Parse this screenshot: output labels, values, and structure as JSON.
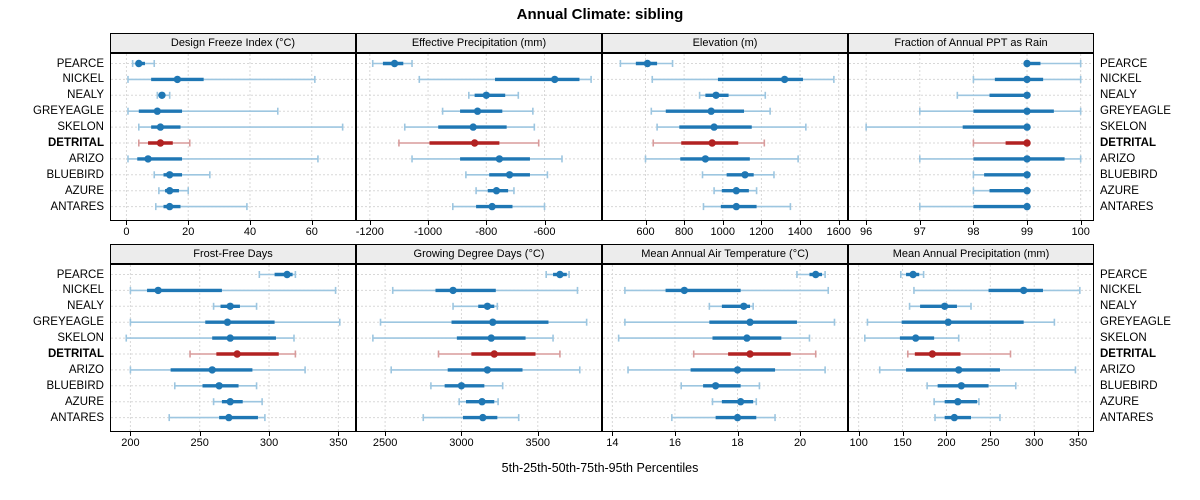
{
  "title": "Annual Climate: sibling",
  "caption": "5th-25th-50th-75th-95th Percentiles",
  "colors": {
    "main": "#1f77b4",
    "main_light": "#9dc6e0",
    "highlight": "#b22222",
    "highlight_light": "#d89b9b",
    "grid": "#d8d8d8",
    "strip_bg": "#ececec",
    "border": "#000000"
  },
  "chart_data": {
    "type": "dotplot-intervals",
    "layout": {
      "rows": 2,
      "cols": 4,
      "legend": "none",
      "grid": "dashed"
    },
    "percentile_order": [
      "5th",
      "25th",
      "50th",
      "75th",
      "95th"
    ],
    "sites": [
      "PEARCE",
      "NICKEL",
      "NEALY",
      "GREYEAGLE",
      "SKELON",
      "DETRITAL",
      "ARIZO",
      "BLUEBIRD",
      "AZURE",
      "ANTARES"
    ],
    "highlight_site": "DETRITAL",
    "panels": [
      {
        "title": "Design Freeze Index (°C)",
        "xlim": [
          -5,
          74
        ],
        "ticks": [
          0,
          20,
          40,
          60
        ],
        "values": [
          [
            2,
            3,
            4,
            6,
            9
          ],
          [
            0.5,
            8,
            16.5,
            25,
            61
          ],
          [
            10,
            11,
            11.5,
            12.5,
            14
          ],
          [
            0.5,
            4,
            10,
            18,
            49
          ],
          [
            4,
            8,
            11,
            17.5,
            70
          ],
          [
            4,
            7,
            11,
            15,
            20.5
          ],
          [
            0.5,
            3.5,
            7,
            18,
            62
          ],
          [
            9,
            12,
            14,
            18,
            27
          ],
          [
            10.5,
            12.5,
            14,
            17,
            20
          ],
          [
            9.5,
            12,
            14,
            17.5,
            39
          ]
        ]
      },
      {
        "title": "Effective Precipitation (mm)",
        "xlim": [
          -1244,
          -406
        ],
        "ticks": [
          -1200,
          -1000,
          -800,
          -600
        ],
        "values": [
          [
            -1190,
            -1155,
            -1115,
            -1085,
            -1055
          ],
          [
            -1030,
            -770,
            -565,
            -480,
            -440
          ],
          [
            -860,
            -840,
            -800,
            -735,
            -690
          ],
          [
            -950,
            -890,
            -830,
            -745,
            -640
          ],
          [
            -1080,
            -965,
            -845,
            -730,
            -635
          ],
          [
            -1100,
            -995,
            -840,
            -755,
            -620
          ],
          [
            -1055,
            -890,
            -755,
            -650,
            -540
          ],
          [
            -870,
            -790,
            -720,
            -650,
            -590
          ],
          [
            -835,
            -795,
            -765,
            -725,
            -705
          ],
          [
            -915,
            -835,
            -780,
            -710,
            -600
          ]
        ]
      },
      {
        "title": "Elevation (m)",
        "xlim": [
          380,
          1643
        ],
        "ticks": [
          600,
          800,
          1000,
          1200,
          1400,
          1600
        ],
        "values": [
          [
            470,
            550,
            610,
            660,
            740
          ],
          [
            635,
            975,
            1320,
            1415,
            1575
          ],
          [
            880,
            910,
            965,
            1030,
            1220
          ],
          [
            630,
            705,
            940,
            1110,
            1245
          ],
          [
            660,
            775,
            955,
            1150,
            1430
          ],
          [
            640,
            785,
            945,
            1080,
            1215
          ],
          [
            600,
            780,
            910,
            1140,
            1390
          ],
          [
            895,
            1020,
            1115,
            1160,
            1265
          ],
          [
            955,
            995,
            1070,
            1135,
            1175
          ],
          [
            900,
            990,
            1070,
            1175,
            1350
          ]
        ]
      },
      {
        "title": "Fraction of Annual PPT as Rain",
        "xlim": [
          95.68,
          100.23
        ],
        "ticks": [
          96,
          97,
          98,
          99,
          100
        ],
        "values": [
          [
            99,
            99,
            99,
            99.25,
            100
          ],
          [
            98,
            98.4,
            99,
            99.3,
            100
          ],
          [
            97.7,
            98.3,
            99,
            99,
            99
          ],
          [
            97,
            98,
            99,
            99.5,
            100
          ],
          [
            96,
            97.8,
            99,
            99,
            99
          ],
          [
            98,
            98.6,
            99,
            99,
            99
          ],
          [
            97,
            98,
            99,
            99.7,
            100
          ],
          [
            98,
            98.2,
            99,
            99,
            99
          ],
          [
            98,
            98.3,
            99,
            99,
            99
          ],
          [
            97,
            98,
            99,
            99,
            99
          ]
        ]
      },
      {
        "title": "Frost-Free Days",
        "xlim": [
          186,
          362
        ],
        "ticks": [
          200,
          250,
          300,
          350
        ],
        "values": [
          [
            293,
            304,
            313,
            317,
            319
          ],
          [
            200,
            212,
            220,
            266,
            348
          ],
          [
            260,
            265,
            272,
            279,
            291
          ],
          [
            200,
            254,
            270,
            304,
            351
          ],
          [
            197,
            259,
            272,
            305,
            318
          ],
          [
            243,
            262,
            277,
            307,
            319
          ],
          [
            200,
            229,
            259,
            288,
            326
          ],
          [
            232,
            252,
            264,
            278,
            291
          ],
          [
            260,
            266,
            272,
            281,
            295
          ],
          [
            228,
            264,
            271,
            292,
            297
          ]
        ]
      },
      {
        "title": "Growing Degree Days (°C)",
        "xlim": [
          2316,
          3914
        ],
        "ticks": [
          2500,
          3000,
          3500
        ],
        "values": [
          [
            3555,
            3600,
            3645,
            3690,
            3705
          ],
          [
            2550,
            2830,
            2945,
            3225,
            3760
          ],
          [
            2945,
            3110,
            3170,
            3215,
            3235
          ],
          [
            2470,
            2935,
            3205,
            3570,
            3820
          ],
          [
            2420,
            2970,
            3195,
            3420,
            3600
          ],
          [
            2850,
            3065,
            3215,
            3485,
            3645
          ],
          [
            2540,
            2910,
            3170,
            3400,
            3775
          ],
          [
            2800,
            2890,
            3000,
            3150,
            3270
          ],
          [
            2985,
            3030,
            3135,
            3215,
            3240
          ],
          [
            2750,
            3010,
            3140,
            3235,
            3375
          ]
        ]
      },
      {
        "title": "Mean Annual Air Temperature (°C)",
        "xlim": [
          13.7,
          21.5
        ],
        "ticks": [
          14,
          16,
          18,
          20
        ],
        "values": [
          [
            19.9,
            20.3,
            20.5,
            20.7,
            20.8
          ],
          [
            14.4,
            15.7,
            16.3,
            18.1,
            20.9
          ],
          [
            17.1,
            17.5,
            18.2,
            18.4,
            18.5
          ],
          [
            14.4,
            17.1,
            18.4,
            19.9,
            21.1
          ],
          [
            14.2,
            17.2,
            18.3,
            19.4,
            20.3
          ],
          [
            16.6,
            17.7,
            18.4,
            19.7,
            20.5
          ],
          [
            14.5,
            16.5,
            18.0,
            19.2,
            20.8
          ],
          [
            16.2,
            16.9,
            17.3,
            18.1,
            18.7
          ],
          [
            17.2,
            17.5,
            18.1,
            18.5,
            18.6
          ],
          [
            15.9,
            17.3,
            18.0,
            18.6,
            19.2
          ]
        ]
      },
      {
        "title": "Mean Annual Precipitation (mm)",
        "xlim": [
          89,
          367
        ],
        "ticks": [
          100,
          150,
          200,
          250,
          300,
          350
        ],
        "values": [
          [
            148,
            154,
            162,
            169,
            174
          ],
          [
            163,
            248,
            288,
            310,
            352
          ],
          [
            158,
            170,
            198,
            212,
            228
          ],
          [
            110,
            149,
            202,
            288,
            323
          ],
          [
            107,
            147,
            165,
            186,
            214
          ],
          [
            156,
            164,
            184,
            216,
            273
          ],
          [
            124,
            154,
            214,
            261,
            347
          ],
          [
            178,
            190,
            217,
            248,
            279
          ],
          [
            186,
            198,
            213,
            235,
            237
          ],
          [
            187,
            198,
            209,
            228,
            261
          ]
        ]
      }
    ]
  }
}
